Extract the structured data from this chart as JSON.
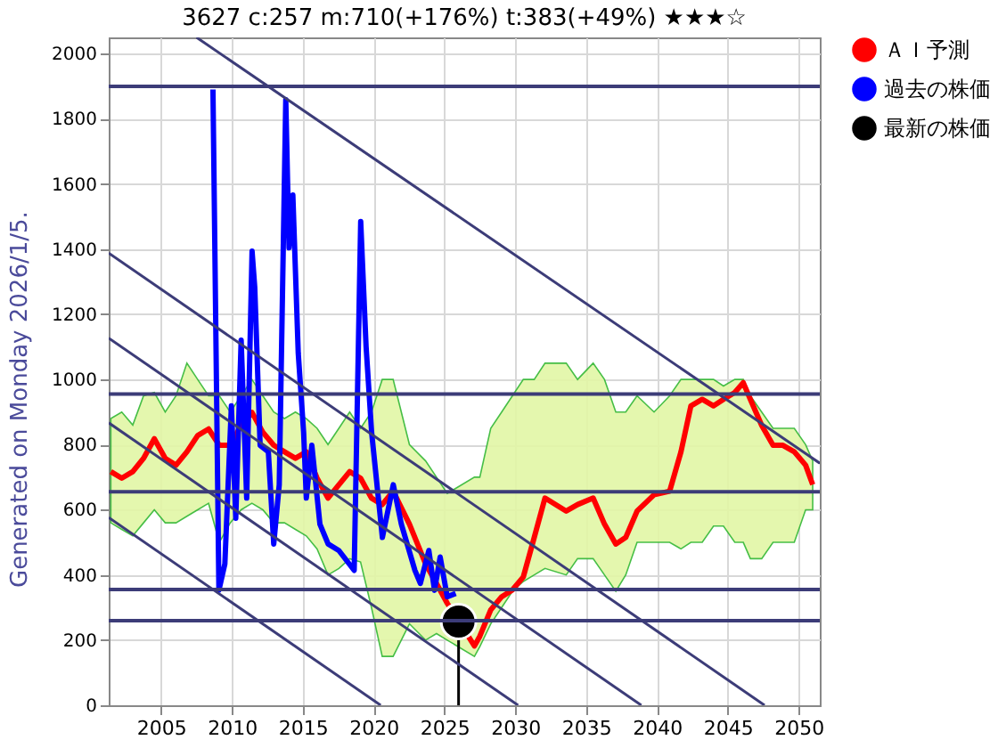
{
  "chart_data": {
    "type": "line",
    "title": "3627 c:257 m:710(+176%) t:383(+49%) ★★★☆",
    "xlim": [
      2001.3,
      2051.5
    ],
    "ylim": [
      0,
      2050
    ],
    "xticks": [
      2005,
      2010,
      2015,
      2020,
      2025,
      2030,
      2035,
      2040,
      2045,
      2050
    ],
    "yticks": [
      0,
      200,
      400,
      600,
      800,
      1000,
      1200,
      1400,
      1600,
      1800,
      2000
    ],
    "grid": true,
    "legend": "right",
    "annotations": [
      "Generated on Monday 2026/1/5."
    ],
    "ref_lines": [
      {
        "axis": "y",
        "value": 1900,
        "color": "#3c3c78"
      },
      {
        "axis": "y",
        "value": 955,
        "color": "#3c3c78"
      },
      {
        "axis": "y",
        "value": 655,
        "color": "#3c3c78"
      },
      {
        "axis": "y",
        "value": 355,
        "color": "#3c3c78"
      },
      {
        "axis": "y",
        "value": 260,
        "color": "#3c3c78"
      }
    ],
    "series": [
      {
        "name": "ＡＩ予測",
        "color": "#ff0000",
        "x": [
          2001.45,
          2002.22,
          2003.0,
          2003.76,
          2004.52,
          2005.29,
          2006.05,
          2006.82,
          2007.58,
          2008.35,
          2009.11,
          2009.88,
          2010.65,
          2011.41,
          2012.18,
          2012.95,
          2013.71,
          2014.48,
          2015.25,
          2016.01,
          2016.78,
          2017.55,
          2018.31,
          2019.08,
          2019.85,
          2020.61,
          2021.38,
          2022.53,
          2023.67,
          2024.44,
          2025.2,
          2027.12,
          2027.5,
          2028.27,
          2029.04,
          2029.8,
          2030.57,
          2031.34,
          2032.1,
          2033.6,
          2034.4,
          2035.5,
          2036.3,
          2037.1,
          2037.8,
          2038.6,
          2039.8,
          2040.9,
          2041.7,
          2042.4,
          2043.2,
          2044.0,
          2044.7,
          2045.5,
          2046.1,
          2046.6,
          2047.4,
          2048.2,
          2048.9,
          2049.7,
          2050.5,
          2051.0
        ],
        "values": [
          717,
          697,
          717,
          758,
          818,
          758,
          737,
          778,
          828,
          848,
          798,
          798,
          859,
          899,
          838,
          798,
          778,
          758,
          778,
          697,
          636,
          677,
          717,
          697,
          636,
          616,
          657,
          556,
          434,
          374,
          313,
          182,
          212,
          293,
          333,
          354,
          394,
          515,
          636,
          596,
          616,
          636,
          556,
          495,
          515,
          596,
          646,
          657,
          778,
          919,
          939,
          919,
          939,
          960,
          990,
          939,
          859,
          798,
          798,
          778,
          737,
          677
        ],
        "lower": [
          560,
          540,
          520,
          560,
          600,
          560,
          560,
          580,
          600,
          620,
          500,
          560,
          600,
          620,
          600,
          560,
          560,
          540,
          520,
          480,
          400,
          420,
          450,
          440,
          300,
          150,
          150,
          250,
          200,
          220,
          200,
          150,
          180,
          250,
          300,
          350,
          380,
          400,
          420,
          400,
          450,
          450,
          400,
          350,
          400,
          500,
          500,
          500,
          480,
          500,
          500,
          550,
          550,
          500,
          500,
          450,
          450,
          500,
          500,
          500,
          600,
          600
        ],
        "upper": [
          880,
          900,
          860,
          950,
          960,
          900,
          950,
          1050,
          1000,
          950,
          950,
          900,
          950,
          1000,
          950,
          900,
          880,
          900,
          880,
          850,
          800,
          850,
          900,
          850,
          900,
          1000,
          1000,
          800,
          750,
          700,
          650,
          700,
          700,
          850,
          900,
          950,
          1000,
          1000,
          1050,
          1050,
          1000,
          1050,
          1000,
          900,
          900,
          950,
          900,
          950,
          1000,
          1000,
          1000,
          1000,
          980,
          1000,
          1000,
          950,
          900,
          850,
          850,
          850,
          800,
          750
        ]
      },
      {
        "name": "過去の株価",
        "color": "#0000ff",
        "x": [
          2008.66,
          2009.08,
          2009.5,
          2009.96,
          2010.27,
          2010.65,
          2011.04,
          2011.42,
          2011.61,
          2011.99,
          2012.57,
          2012.95,
          2013.34,
          2013.8,
          2014.03,
          2014.3,
          2014.68,
          2015.06,
          2015.25,
          2015.64,
          2016.21,
          2016.79,
          2017.55,
          2018.63,
          2019.09,
          2019.47,
          2019.86,
          2020.62,
          2021.39,
          2021.96,
          2022.92,
          2023.3,
          2023.9,
          2024.3,
          2024.7,
          2025.2,
          2025.8
        ],
        "values": [
          1890,
          353,
          434,
          919,
          574,
          1121,
          636,
          1394,
          1283,
          798,
          778,
          495,
          677,
          1859,
          1404,
          1566,
          1081,
          838,
          636,
          798,
          556,
          495,
          475,
          414,
          1485,
          1101,
          838,
          515,
          677,
          556,
          414,
          374,
          475,
          353,
          455,
          333,
          343
        ]
      },
      {
        "name": "最新の株価",
        "color": "#000000",
        "type": "lollipop",
        "x": [
          2026.0
        ],
        "values": [
          257
        ]
      },
      {
        "color": "#3c3c78",
        "x": [
          2007.5,
          2051.5
        ],
        "values": [
          2050,
          743
        ]
      },
      {
        "color": "#3c3c78",
        "x": [
          2001.3,
          2047.6
        ],
        "values": [
          1388,
          0
        ]
      },
      {
        "color": "#3c3c78",
        "x": [
          2001.3,
          2038.9
        ],
        "values": [
          1127,
          0
        ]
      },
      {
        "color": "#3c3c78",
        "x": [
          2001.3,
          2030.2
        ],
        "values": [
          867,
          0
        ]
      },
      {
        "color": "#3c3c78",
        "x": [
          2001.3,
          2020.5
        ],
        "values": [
          576,
          0
        ]
      }
    ]
  }
}
